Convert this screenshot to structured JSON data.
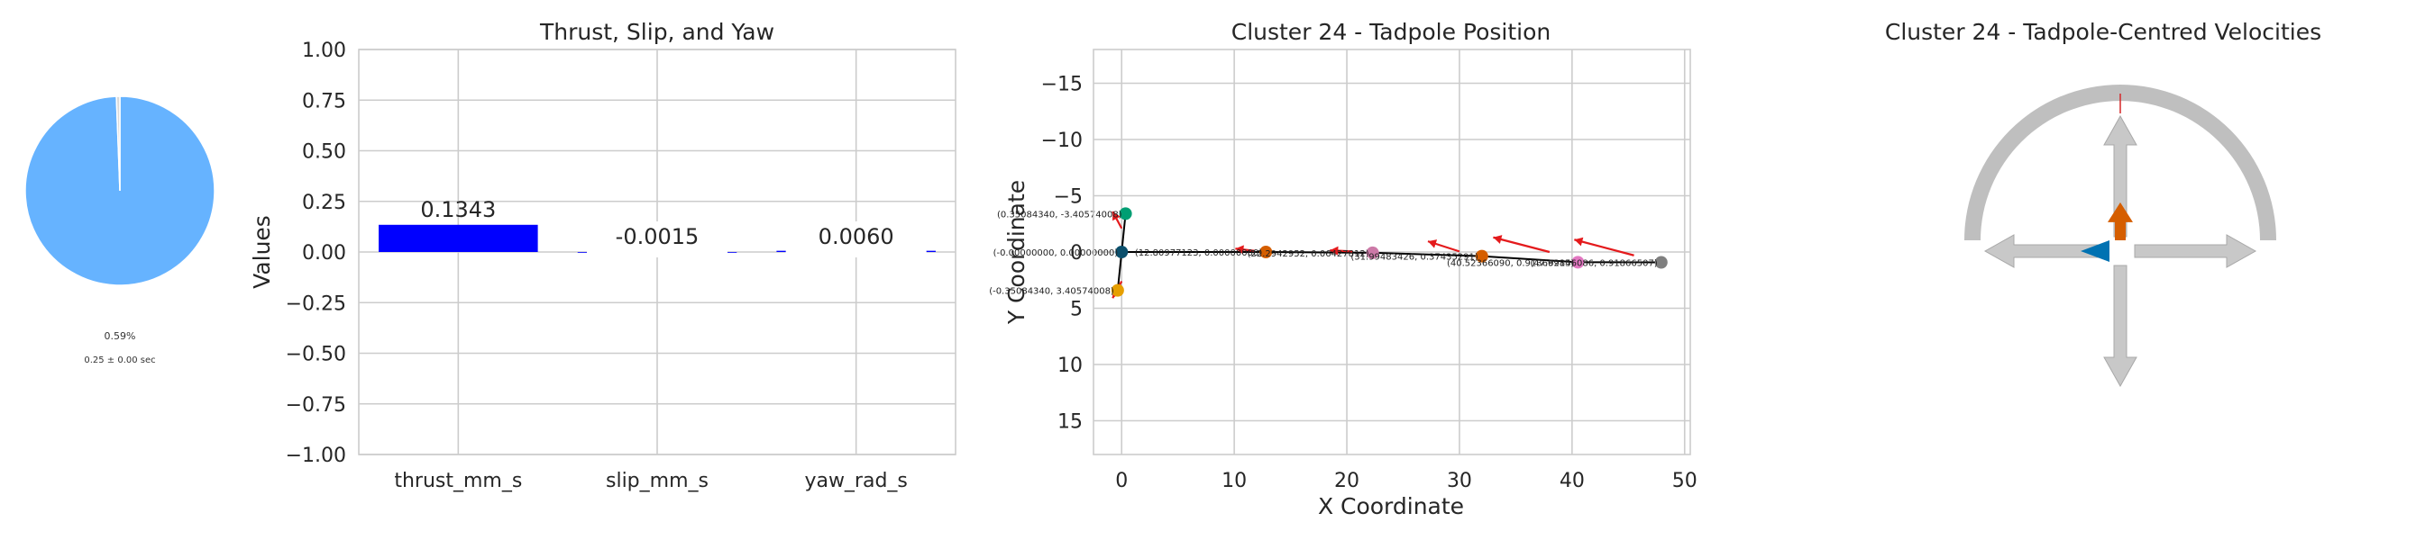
{
  "chart_data": [
    {
      "type": "pie",
      "values": [
        99.41,
        0.59
      ],
      "colors": [
        "#66b3ff",
        "#d9d9d9"
      ],
      "percent_label": "0.59%",
      "time_label": "0.25 ± 0.00 sec"
    },
    {
      "type": "bar",
      "title": "Thrust, Slip, and Yaw",
      "ylabel": "Values",
      "categories": [
        "thrust_mm_s",
        "slip_mm_s",
        "yaw_rad_s"
      ],
      "values": [
        0.1343,
        -0.0015,
        0.006
      ],
      "value_labels": [
        "0.1343",
        "-0.0015",
        "0.0060"
      ],
      "ylim": [
        -1.0,
        1.0
      ],
      "yticks": [
        -1.0,
        -0.75,
        -0.5,
        -0.25,
        0.0,
        0.25,
        0.5,
        0.75,
        1.0
      ],
      "ytick_labels": [
        "−1.00",
        "−0.75",
        "−0.50",
        "−0.25",
        "0.00",
        "0.25",
        "0.50",
        "0.75",
        "1.00"
      ],
      "bar_color": "#0000ff",
      "grid": true
    },
    {
      "type": "scatter",
      "title": "Cluster 24 - Tadpole Position",
      "xlabel": "X Coordinate",
      "ylabel": "Y Coordinate",
      "xlim": [
        -2.5,
        50.5
      ],
      "ylim": [
        18.0,
        -18.0
      ],
      "xticks": [
        0,
        10,
        20,
        30,
        40,
        50
      ],
      "yticks": [
        -15,
        -10,
        -5,
        0,
        5,
        10,
        15
      ],
      "ytick_labels": [
        "−15",
        "−10",
        "−5",
        "0",
        "5",
        "10",
        "15"
      ],
      "grid": true,
      "points": [
        {
          "x": 0.35,
          "y": -3.41,
          "color": "#009e73",
          "label": "(0.35084340, -3.40574008)"
        },
        {
          "x": 0.0,
          "y": 0.0,
          "color": "#0b4f6c",
          "label": "(-0.00000000, 0.00000000)"
        },
        {
          "x": -0.35,
          "y": 3.41,
          "color": "#e69f00",
          "label": "(-0.35084340, 3.40574008)"
        },
        {
          "x": 12.81,
          "y": 0.0,
          "color": "#d55e00",
          "label": "(12.80977123, 0.00000000)"
        },
        {
          "x": 22.29,
          "y": 0.07,
          "color": "#cc79a7",
          "label": "(22.2942952, 0.06427812)"
        },
        {
          "x": 31.99,
          "y": 0.37,
          "color": "#d55e00",
          "label": "(31.99483426, 0.37435291)"
        },
        {
          "x": 40.52,
          "y": 0.91,
          "color": "#e377c2",
          "label": "(40.52366090, 0.91366985)"
        },
        {
          "x": 47.92,
          "y": 0.92,
          "color": "#7f7f7f",
          "label": "(47.92146086, 0.91866507)"
        }
      ],
      "arrows": [
        {
          "x": 0.0,
          "y": -2.1,
          "dx": -0.8,
          "dy": -1.5
        },
        {
          "x": 0.0,
          "y": 2.6,
          "dx": -0.8,
          "dy": 1.5
        },
        {
          "x": 11.8,
          "y": -0.1,
          "dx": -1.7,
          "dy": -0.2
        },
        {
          "x": 20.5,
          "y": -0.05,
          "dx": -2.0,
          "dy": -0.1
        },
        {
          "x": 30.0,
          "y": -0.05,
          "dx": -2.8,
          "dy": -0.9
        },
        {
          "x": 38.0,
          "y": 0.0,
          "dx": -5.0,
          "dy": -1.3
        },
        {
          "x": 45.5,
          "y": 0.3,
          "dx": -5.3,
          "dy": -1.4
        }
      ]
    },
    {
      "type": "diagram",
      "title": "Cluster 24 - Tadpole-Centred Velocities",
      "arc_color": "#bfbfbf",
      "arrow_color": "#c8c8c8",
      "forward_color": "#d55e00",
      "left_color": "#0072b2",
      "tick_color": "#d62728",
      "forward_level": 0.1343,
      "left_level": 0.0015
    }
  ]
}
